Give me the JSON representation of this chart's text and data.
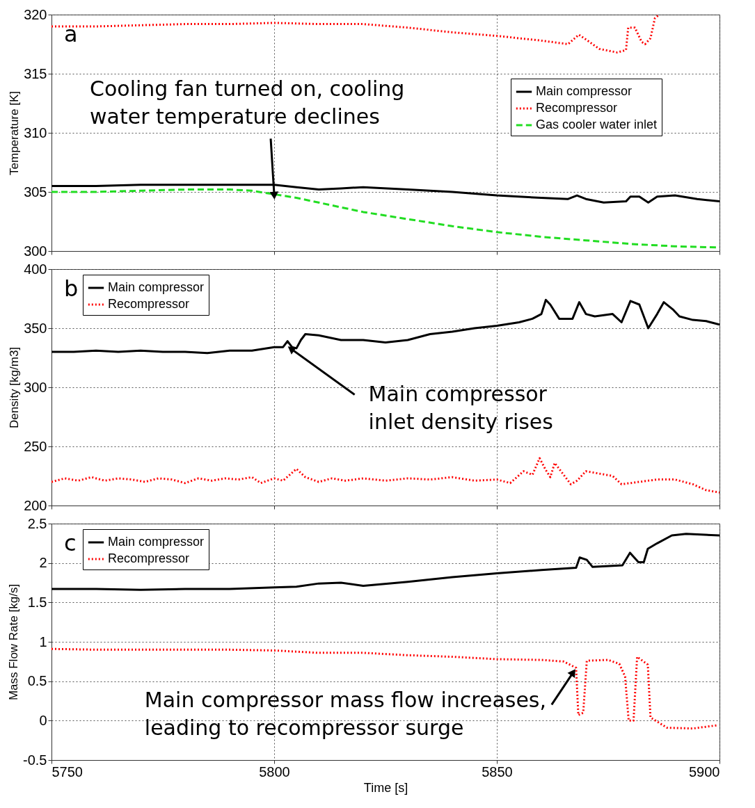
{
  "chart_data": [
    {
      "type": "line",
      "ylabel": "Temperature [K]",
      "xlim": [
        5750,
        5900
      ],
      "xticks": [
        5750,
        5800,
        5850,
        5900
      ],
      "ylim": [
        300,
        320
      ],
      "yticks": [
        300,
        305,
        310,
        315,
        320
      ],
      "grid": true,
      "legend": "top right",
      "tick_labels": "y",
      "annotations": [
        "a",
        {
          "text": "Cooling fan turned on, cooling water temperature declines",
          "x": 5800,
          "y": 304.8
        }
      ],
      "series": [
        {
          "name": "Main compressor",
          "color": "#000000",
          "line_style": "solid",
          "x": [
            5750,
            5760,
            5770,
            5780,
            5790,
            5800,
            5805,
            5810,
            5815,
            5820,
            5830,
            5840,
            5850,
            5860,
            5866,
            5868,
            5870,
            5874,
            5879,
            5880,
            5882,
            5884,
            5886,
            5890,
            5895,
            5900
          ],
          "values": [
            305.5,
            305.5,
            305.6,
            305.6,
            305.6,
            305.6,
            305.4,
            305.2,
            305.3,
            305.4,
            305.2,
            305.0,
            304.7,
            304.5,
            304.4,
            304.7,
            304.4,
            304.1,
            304.2,
            304.6,
            304.6,
            304.1,
            304.6,
            304.7,
            304.4,
            304.2
          ]
        },
        {
          "name": "Recompressor",
          "color": "#ff0000",
          "line_style": "dotted",
          "x": [
            5750,
            5760,
            5770,
            5780,
            5790,
            5800,
            5810,
            5820,
            5830,
            5840,
            5850,
            5860,
            5866,
            5868.4,
            5870,
            5873,
            5877,
            5879,
            5879.5,
            5881,
            5882.5,
            5883.3,
            5884.5,
            5885.5,
            5886.5
          ],
          "values": [
            319.0,
            319.0,
            319.1,
            319.2,
            319.2,
            319.3,
            319.2,
            319.2,
            318.9,
            318.5,
            318.2,
            317.8,
            317.5,
            318.3,
            317.9,
            317.1,
            316.8,
            317.0,
            318.9,
            318.9,
            317.7,
            317.5,
            318.0,
            319.7,
            320.0
          ]
        },
        {
          "name": "Gas cooler water inlet",
          "color": "#22dd22",
          "line_style": "dashed",
          "x": [
            5750,
            5760,
            5770,
            5780,
            5790,
            5795,
            5800,
            5805,
            5810,
            5820,
            5830,
            5840,
            5850,
            5860,
            5870,
            5880,
            5890,
            5900
          ],
          "values": [
            305.0,
            305.0,
            305.1,
            305.2,
            305.2,
            305.1,
            304.8,
            304.5,
            304.1,
            303.3,
            302.7,
            302.1,
            301.6,
            301.2,
            300.9,
            300.6,
            300.4,
            300.3
          ]
        }
      ]
    },
    {
      "type": "line",
      "ylabel": "Density [kg/m3]",
      "xlim": [
        5750,
        5900
      ],
      "xticks": [
        5750,
        5800,
        5850,
        5900
      ],
      "ylim": [
        200,
        400
      ],
      "yticks": [
        200,
        250,
        300,
        350,
        400
      ],
      "grid": true,
      "legend": "top left",
      "tick_labels": "y",
      "annotations": [
        "b",
        {
          "text": "Main compressor inlet density rises",
          "x": 5804,
          "y": 332
        }
      ],
      "series": [
        {
          "name": "Main compressor",
          "color": "#000000",
          "line_style": "solid",
          "x": [
            5750,
            5755,
            5760,
            5765,
            5770,
            5775,
            5780,
            5785,
            5790,
            5795,
            5800,
            5802,
            5803,
            5804,
            5805,
            5806,
            5807,
            5810,
            5815,
            5820,
            5825,
            5830,
            5835,
            5840,
            5845,
            5850,
            5855,
            5858,
            5860,
            5861,
            5862,
            5864,
            5867,
            5868.5,
            5870,
            5872,
            5876,
            5878,
            5880,
            5882,
            5884,
            5886,
            5887.5,
            5889.5,
            5891,
            5894,
            5897,
            5900
          ],
          "values": [
            330,
            330,
            331,
            330,
            331,
            330,
            330,
            329,
            331,
            331,
            334,
            334,
            339,
            334,
            333,
            340,
            345,
            344,
            340,
            340,
            338,
            340,
            345,
            347,
            350,
            352,
            355,
            358,
            362,
            374,
            370,
            358,
            358,
            372,
            362,
            360,
            362,
            355,
            373,
            370,
            350,
            362,
            372,
            366,
            360,
            357,
            356,
            353
          ]
        },
        {
          "name": "Recompressor",
          "color": "#ff0000",
          "line_style": "dotted",
          "x": [
            5750,
            5753,
            5756,
            5759,
            5762,
            5765,
            5768,
            5771,
            5774,
            5777,
            5780,
            5783,
            5786,
            5789,
            5792,
            5795,
            5797,
            5800,
            5802,
            5805,
            5807,
            5810,
            5813,
            5816,
            5820,
            5825,
            5830,
            5835,
            5840,
            5845,
            5850,
            5853,
            5856,
            5858,
            5859.6,
            5861,
            5862,
            5863,
            5865,
            5866.6,
            5868,
            5870,
            5873,
            5876,
            5878,
            5882,
            5886,
            5890,
            5894,
            5897,
            5900
          ],
          "values": [
            220,
            223,
            221,
            224,
            221,
            223,
            222,
            220,
            223,
            222,
            219,
            223,
            221,
            223,
            222,
            224,
            219,
            223,
            221,
            231,
            224,
            220,
            223,
            221,
            223,
            221,
            223,
            222,
            224,
            221,
            222,
            219,
            229,
            226,
            240,
            230,
            224,
            236,
            226,
            218,
            221,
            229,
            227,
            225,
            218,
            220,
            222,
            222,
            218,
            213,
            211
          ]
        }
      ]
    },
    {
      "type": "line",
      "xlabel": "Time [s]",
      "ylabel": "Mass Flow Rate [kg/s]",
      "xlim": [
        5750,
        5900
      ],
      "xticks": [
        5750,
        5800,
        5850,
        5900
      ],
      "ylim": [
        -0.5,
        2.5
      ],
      "yticks": [
        -0.5,
        0,
        0.5,
        1,
        1.5,
        2,
        2.5
      ],
      "grid": true,
      "legend": "top left",
      "annotations": [
        "c",
        {
          "text": "Main compressor mass flow increases, leading to recompressor surge",
          "x": 5867,
          "y": 0.6
        }
      ],
      "series": [
        {
          "name": "Main compressor",
          "color": "#000000",
          "line_style": "solid",
          "x": [
            5750,
            5760,
            5770,
            5780,
            5790,
            5800,
            5805,
            5810,
            5815,
            5820,
            5830,
            5840,
            5850,
            5860,
            5867.8,
            5868.6,
            5870.2,
            5871.5,
            5878.2,
            5879.9,
            5881.8,
            5883,
            5883.9,
            5886,
            5889.3,
            5892.5,
            5900
          ],
          "values": [
            1.67,
            1.67,
            1.66,
            1.67,
            1.67,
            1.69,
            1.7,
            1.74,
            1.75,
            1.71,
            1.76,
            1.82,
            1.87,
            1.91,
            1.94,
            2.07,
            2.04,
            1.95,
            1.97,
            2.13,
            2.01,
            2.01,
            2.18,
            2.25,
            2.35,
            2.37,
            2.35
          ]
        },
        {
          "name": "Recompressor",
          "color": "#ff0000",
          "line_style": "dotted",
          "x": [
            5750,
            5760,
            5770,
            5780,
            5790,
            5800,
            5810,
            5820,
            5830,
            5840,
            5850,
            5860,
            5865,
            5867.8,
            5868.3,
            5869.4,
            5870.2,
            5875,
            5877.5,
            5878.8,
            5879.6,
            5880.7,
            5881.5,
            5883.9,
            5884.5,
            5888.2,
            5894,
            5899.4
          ],
          "values": [
            0.91,
            0.9,
            0.9,
            0.9,
            0.9,
            0.89,
            0.86,
            0.86,
            0.83,
            0.81,
            0.78,
            0.77,
            0.75,
            0.67,
            0.07,
            0.1,
            0.76,
            0.77,
            0.72,
            0.56,
            0.0,
            0.0,
            0.81,
            0.71,
            0.04,
            -0.09,
            -0.1,
            -0.06
          ]
        }
      ]
    }
  ]
}
